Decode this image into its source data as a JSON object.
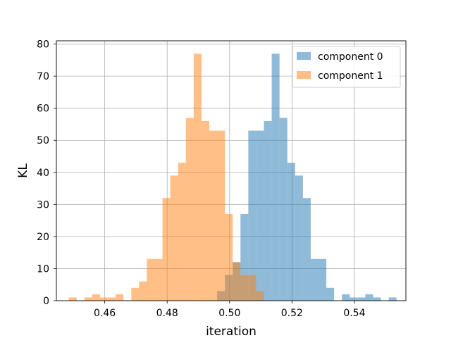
{
  "chart_data": {
    "type": "histogram",
    "xlabel": "iteration",
    "ylabel": "KL",
    "xlim": [
      0.4445,
      0.5565
    ],
    "ylim": [
      0,
      81
    ],
    "x_ticks": [
      0.46,
      0.48,
      0.5,
      0.52,
      0.54
    ],
    "x_tick_labels": [
      "0.46",
      "0.48",
      "0.50",
      "0.52",
      "0.54"
    ],
    "y_ticks": [
      0,
      10,
      20,
      30,
      40,
      50,
      60,
      70,
      80
    ],
    "y_tick_labels": [
      "0",
      "10",
      "20",
      "30",
      "40",
      "50",
      "60",
      "70",
      "80"
    ],
    "grid": true,
    "legend_position": "top-right",
    "bins": {
      "start": 0.4485,
      "width": 0.0025,
      "count": 42
    },
    "series": [
      {
        "name": "component 0",
        "color": "#1f77b4",
        "alpha": 0.5,
        "counts": [
          0,
          0,
          0,
          0,
          0,
          0,
          0,
          0,
          0,
          0,
          0,
          0,
          0,
          0,
          0,
          0,
          0,
          0,
          0,
          3,
          8,
          12,
          27,
          53,
          53,
          56,
          77,
          57,
          43,
          39,
          32,
          13,
          13,
          4,
          0,
          2,
          1,
          1,
          2,
          1,
          0,
          1
        ]
      },
      {
        "name": "component 1",
        "color": "#ff7f0e",
        "alpha": 0.5,
        "counts": [
          1,
          0,
          1,
          2,
          1,
          1,
          2,
          0,
          4,
          6,
          13,
          13,
          32,
          39,
          43,
          57,
          77,
          56,
          53,
          53,
          27,
          12,
          8,
          8,
          3,
          0,
          0,
          0,
          0,
          0,
          0,
          0,
          0,
          0,
          0,
          0,
          0,
          0,
          0,
          0,
          0,
          0
        ]
      }
    ]
  }
}
